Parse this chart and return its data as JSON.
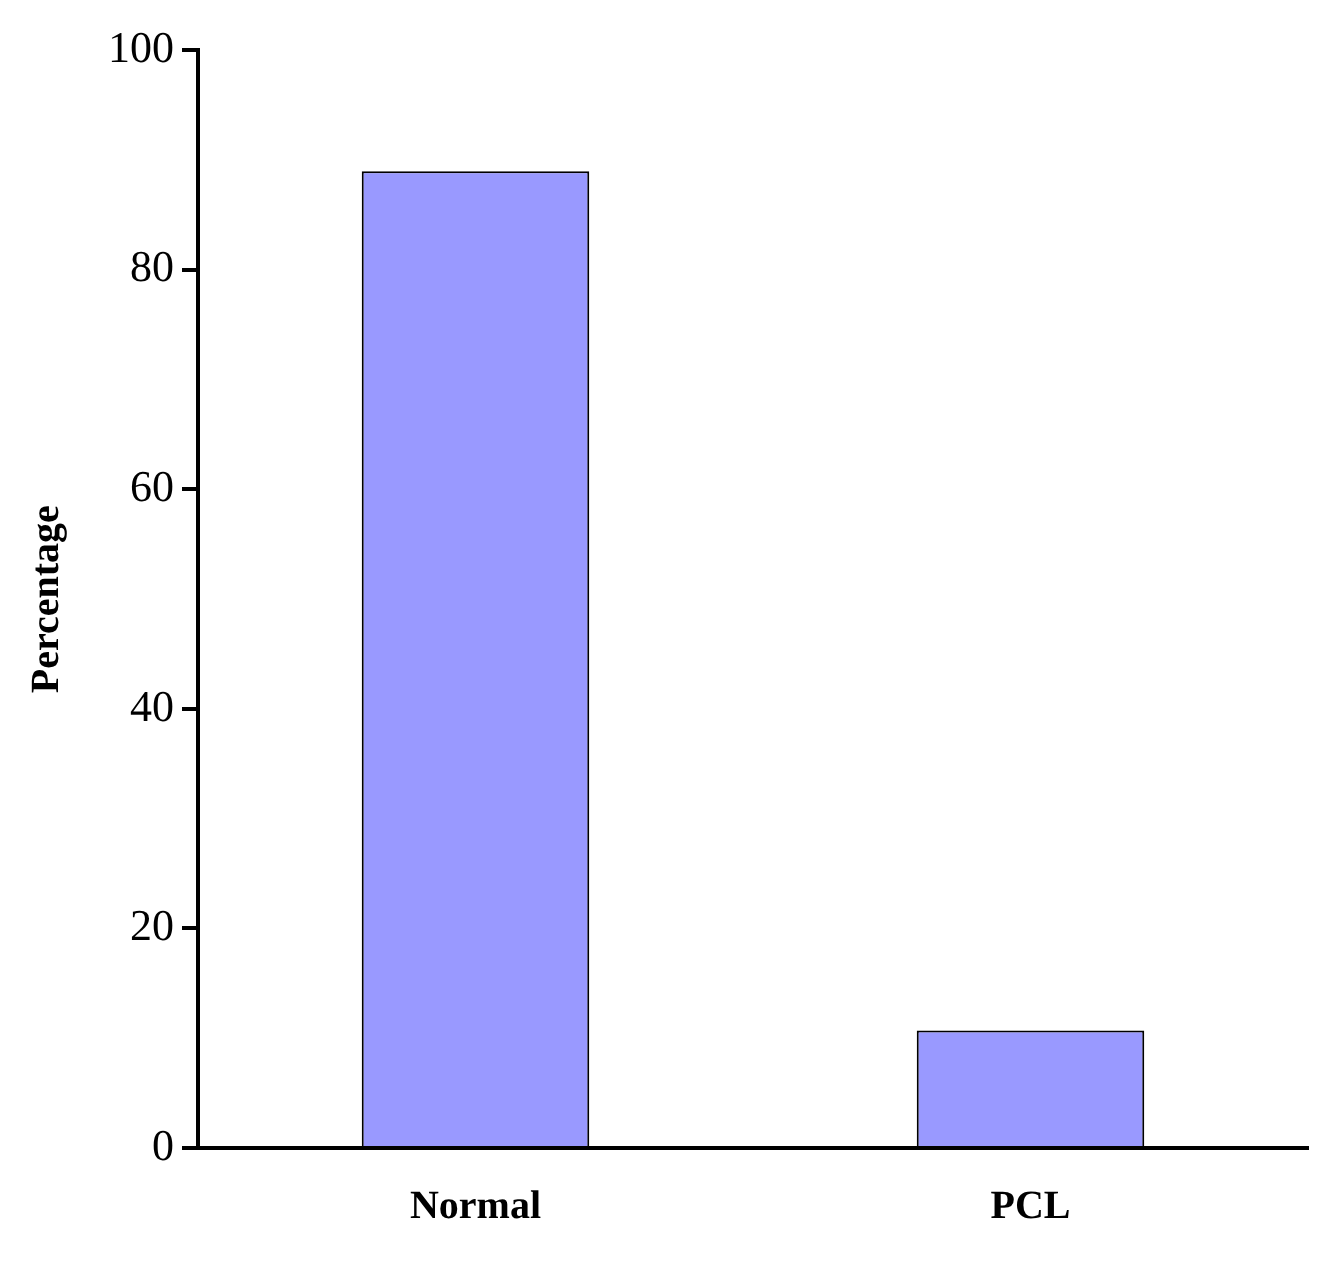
{
  "chart_data": {
    "type": "bar",
    "ylabel": "Percentage",
    "categories": [
      "Normal",
      "PCL"
    ],
    "values": [
      89,
      10.7
    ],
    "color": "#9999ff",
    "ylim": [
      0,
      100
    ],
    "yticks": [
      0,
      20,
      40,
      60,
      80,
      100
    ],
    "grid": false,
    "legend": false
  }
}
